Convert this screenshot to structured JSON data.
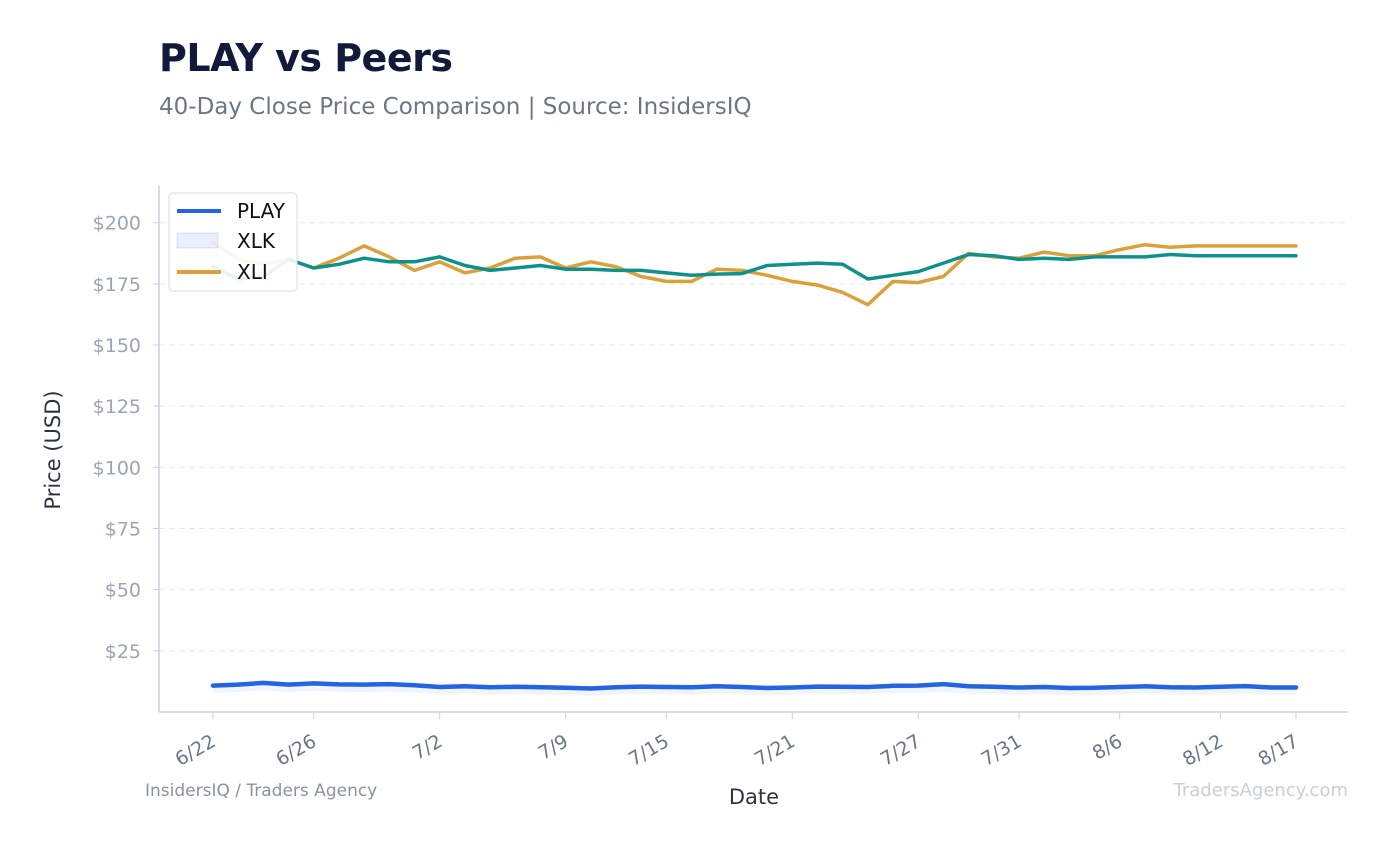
{
  "title": "PLAY vs Peers",
  "subtitle": "40-Day Close Price Comparison | Source: InsidersIQ",
  "footer_left": "InsidersIQ / Traders Agency",
  "footer_right": "TradersAgency.com",
  "colors": {
    "play": "#2563e0",
    "xlk": "#10908a",
    "xli": "#d9a13c",
    "grid": "#e6e9ee",
    "axis": "#c9d1dc"
  },
  "chart_data": {
    "type": "line",
    "xlabel": "Date",
    "ylabel": "Price (USD)",
    "ylim": [
      0,
      200
    ],
    "yticks": [
      25,
      50,
      75,
      100,
      125,
      150,
      175,
      200
    ],
    "ytick_labels": [
      "$25",
      "$50",
      "$75",
      "$100",
      "$125",
      "$150",
      "$175",
      "$200"
    ],
    "grid": true,
    "legend_position": "top-left",
    "x": [
      "6/22",
      "6/23",
      "6/24",
      "6/25",
      "6/26",
      "6/27",
      "6/28",
      "6/29",
      "6/30",
      "7/2",
      "7/3",
      "7/4",
      "7/5",
      "7/8",
      "7/9",
      "7/10",
      "7/11",
      "7/12",
      "7/15",
      "7/16",
      "7/17",
      "7/18",
      "7/19",
      "7/21",
      "7/22",
      "7/23",
      "7/24",
      "7/25",
      "7/27",
      "7/28",
      "7/29",
      "7/30",
      "7/31",
      "8/1",
      "8/2",
      "8/5",
      "8/6",
      "8/7",
      "8/8",
      "8/9",
      "8/12",
      "8/13",
      "8/15",
      "8/17"
    ],
    "xtick_labels": [
      "6/22",
      "6/26",
      "7/2",
      "7/9",
      "7/15",
      "7/21",
      "7/27",
      "7/31",
      "8/6",
      "8/12",
      "8/17"
    ],
    "series": [
      {
        "name": "PLAY",
        "band_name": "XLK",
        "values": [
          10.8,
          11.2,
          11.9,
          11.2,
          11.7,
          11.3,
          11.2,
          11.4,
          10.9,
          10.2,
          10.5,
          10.1,
          10.3,
          10.1,
          9.9,
          9.6,
          10.1,
          10.4,
          10.2,
          10.1,
          10.5,
          10.2,
          9.8,
          10.0,
          10.4,
          10.3,
          10.2,
          10.7,
          10.8,
          11.4,
          10.5,
          10.3,
          10.0,
          10.2,
          9.8,
          9.9,
          10.2,
          10.5,
          10.1,
          10.0,
          10.3,
          10.6,
          10.0,
          10.0
        ]
      },
      {
        "name": "XLK",
        "values": [
          182,
          177,
          178,
          185,
          181.5,
          183,
          185.5,
          184,
          184,
          186,
          182.5,
          180.5,
          181.5,
          182.5,
          181,
          181,
          180.5,
          180.5,
          179.5,
          178.5,
          179,
          179.2,
          182.5,
          183,
          183.5,
          183,
          177,
          178.5,
          180,
          183.5,
          187,
          186.5,
          185,
          185.5,
          185,
          186,
          186,
          186,
          187,
          186.5,
          186.5,
          186.5,
          186.5,
          186.5
        ]
      },
      {
        "name": "XLI",
        "values": [
          192,
          185,
          183,
          185,
          181.5,
          185.5,
          190.5,
          186,
          180.5,
          184,
          179.5,
          181.5,
          185.5,
          186,
          181.5,
          184,
          182,
          178,
          176,
          176,
          181,
          180.5,
          178.5,
          176,
          174.5,
          171.5,
          166.5,
          176,
          175.5,
          178,
          187.5,
          186,
          185.5,
          188,
          186.5,
          186.5,
          189,
          191,
          190,
          190.5,
          190.5,
          190.5,
          190.5,
          190.5
        ]
      }
    ]
  }
}
